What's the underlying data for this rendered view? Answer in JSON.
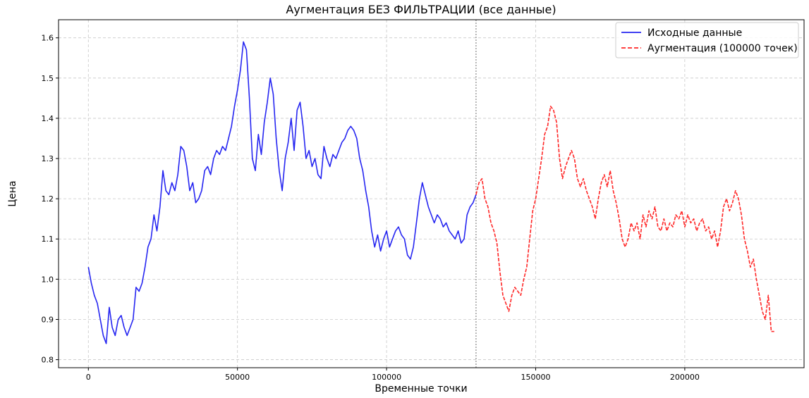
{
  "chart_data": {
    "type": "line",
    "title": "Аугментация БЕЗ ФИЛЬТРАЦИИ (все данные)",
    "xlabel": "Временные точки",
    "ylabel": "Цена",
    "xlim": [
      -10000,
      240000
    ],
    "ylim": [
      0.78,
      1.645
    ],
    "x_ticks": [
      0,
      50000,
      100000,
      150000,
      200000
    ],
    "x_tick_labels": [
      "0",
      "50000",
      "100000",
      "150000",
      "200000"
    ],
    "y_ticks": [
      0.8,
      0.9,
      1.0,
      1.1,
      1.2,
      1.3,
      1.4,
      1.5,
      1.6
    ],
    "y_tick_labels": [
      "0.8",
      "0.9",
      "1.0",
      "1.1",
      "1.2",
      "1.3",
      "1.4",
      "1.5",
      "1.6"
    ],
    "grid": true,
    "legend_position": "top-right",
    "split_x": 130000,
    "series": [
      {
        "name": "Исходные данные",
        "color": "#0000ee",
        "style": "solid",
        "points": [
          [
            0,
            1.03
          ],
          [
            1000,
            0.99
          ],
          [
            2000,
            0.96
          ],
          [
            3000,
            0.94
          ],
          [
            4000,
            0.9
          ],
          [
            5000,
            0.86
          ],
          [
            6000,
            0.84
          ],
          [
            7000,
            0.93
          ],
          [
            8000,
            0.88
          ],
          [
            9000,
            0.86
          ],
          [
            10000,
            0.9
          ],
          [
            11000,
            0.91
          ],
          [
            12000,
            0.88
          ],
          [
            13000,
            0.86
          ],
          [
            14000,
            0.88
          ],
          [
            15000,
            0.9
          ],
          [
            16000,
            0.98
          ],
          [
            17000,
            0.97
          ],
          [
            18000,
            0.99
          ],
          [
            19000,
            1.03
          ],
          [
            20000,
            1.08
          ],
          [
            21000,
            1.1
          ],
          [
            22000,
            1.16
          ],
          [
            23000,
            1.12
          ],
          [
            24000,
            1.18
          ],
          [
            25000,
            1.27
          ],
          [
            26000,
            1.22
          ],
          [
            27000,
            1.21
          ],
          [
            28000,
            1.24
          ],
          [
            29000,
            1.22
          ],
          [
            30000,
            1.26
          ],
          [
            31000,
            1.33
          ],
          [
            32000,
            1.32
          ],
          [
            33000,
            1.28
          ],
          [
            34000,
            1.22
          ],
          [
            35000,
            1.24
          ],
          [
            36000,
            1.19
          ],
          [
            37000,
            1.2
          ],
          [
            38000,
            1.22
          ],
          [
            39000,
            1.27
          ],
          [
            40000,
            1.28
          ],
          [
            41000,
            1.26
          ],
          [
            42000,
            1.3
          ],
          [
            43000,
            1.32
          ],
          [
            44000,
            1.31
          ],
          [
            45000,
            1.33
          ],
          [
            46000,
            1.32
          ],
          [
            47000,
            1.35
          ],
          [
            48000,
            1.38
          ],
          [
            49000,
            1.43
          ],
          [
            50000,
            1.47
          ],
          [
            51000,
            1.52
          ],
          [
            52000,
            1.59
          ],
          [
            53000,
            1.57
          ],
          [
            54000,
            1.45
          ],
          [
            55000,
            1.3
          ],
          [
            56000,
            1.27
          ],
          [
            57000,
            1.36
          ],
          [
            58000,
            1.31
          ],
          [
            59000,
            1.39
          ],
          [
            60000,
            1.44
          ],
          [
            61000,
            1.5
          ],
          [
            62000,
            1.46
          ],
          [
            63000,
            1.35
          ],
          [
            64000,
            1.27
          ],
          [
            65000,
            1.22
          ],
          [
            66000,
            1.3
          ],
          [
            67000,
            1.34
          ],
          [
            68000,
            1.4
          ],
          [
            69000,
            1.32
          ],
          [
            70000,
            1.42
          ],
          [
            71000,
            1.44
          ],
          [
            72000,
            1.38
          ],
          [
            73000,
            1.3
          ],
          [
            74000,
            1.32
          ],
          [
            75000,
            1.28
          ],
          [
            76000,
            1.3
          ],
          [
            77000,
            1.26
          ],
          [
            78000,
            1.25
          ],
          [
            79000,
            1.33
          ],
          [
            80000,
            1.3
          ],
          [
            81000,
            1.28
          ],
          [
            82000,
            1.31
          ],
          [
            83000,
            1.3
          ],
          [
            84000,
            1.32
          ],
          [
            85000,
            1.34
          ],
          [
            86000,
            1.35
          ],
          [
            87000,
            1.37
          ],
          [
            88000,
            1.38
          ],
          [
            89000,
            1.37
          ],
          [
            90000,
            1.35
          ],
          [
            91000,
            1.3
          ],
          [
            92000,
            1.27
          ],
          [
            93000,
            1.22
          ],
          [
            94000,
            1.18
          ],
          [
            95000,
            1.12
          ],
          [
            96000,
            1.08
          ],
          [
            97000,
            1.11
          ],
          [
            98000,
            1.07
          ],
          [
            99000,
            1.1
          ],
          [
            100000,
            1.12
          ],
          [
            101000,
            1.08
          ],
          [
            102000,
            1.1
          ],
          [
            103000,
            1.12
          ],
          [
            104000,
            1.13
          ],
          [
            105000,
            1.11
          ],
          [
            106000,
            1.1
          ],
          [
            107000,
            1.06
          ],
          [
            108000,
            1.05
          ],
          [
            109000,
            1.08
          ],
          [
            110000,
            1.14
          ],
          [
            111000,
            1.2
          ],
          [
            112000,
            1.24
          ],
          [
            113000,
            1.21
          ],
          [
            114000,
            1.18
          ],
          [
            115000,
            1.16
          ],
          [
            116000,
            1.14
          ],
          [
            117000,
            1.16
          ],
          [
            118000,
            1.15
          ],
          [
            119000,
            1.13
          ],
          [
            120000,
            1.14
          ],
          [
            121000,
            1.12
          ],
          [
            122000,
            1.11
          ],
          [
            123000,
            1.1
          ],
          [
            124000,
            1.12
          ],
          [
            125000,
            1.09
          ],
          [
            126000,
            1.1
          ],
          [
            127000,
            1.16
          ],
          [
            128000,
            1.18
          ],
          [
            129000,
            1.19
          ],
          [
            130000,
            1.21
          ]
        ]
      },
      {
        "name": "Аугментация (100000 точек)",
        "color": "#ff0000",
        "style": "dashed",
        "points": [
          [
            130000,
            1.21
          ],
          [
            131000,
            1.24
          ],
          [
            132000,
            1.25
          ],
          [
            133000,
            1.2
          ],
          [
            134000,
            1.18
          ],
          [
            135000,
            1.14
          ],
          [
            136000,
            1.12
          ],
          [
            137000,
            1.09
          ],
          [
            138000,
            1.02
          ],
          [
            139000,
            0.96
          ],
          [
            140000,
            0.94
          ],
          [
            141000,
            0.92
          ],
          [
            142000,
            0.96
          ],
          [
            143000,
            0.98
          ],
          [
            144000,
            0.97
          ],
          [
            145000,
            0.96
          ],
          [
            146000,
            1.0
          ],
          [
            147000,
            1.03
          ],
          [
            148000,
            1.1
          ],
          [
            149000,
            1.17
          ],
          [
            150000,
            1.2
          ],
          [
            151000,
            1.25
          ],
          [
            152000,
            1.3
          ],
          [
            153000,
            1.36
          ],
          [
            154000,
            1.38
          ],
          [
            155000,
            1.43
          ],
          [
            156000,
            1.42
          ],
          [
            157000,
            1.39
          ],
          [
            158000,
            1.3
          ],
          [
            159000,
            1.25
          ],
          [
            160000,
            1.28
          ],
          [
            161000,
            1.3
          ],
          [
            162000,
            1.32
          ],
          [
            163000,
            1.3
          ],
          [
            164000,
            1.25
          ],
          [
            165000,
            1.23
          ],
          [
            166000,
            1.25
          ],
          [
            167000,
            1.22
          ],
          [
            168000,
            1.2
          ],
          [
            169000,
            1.18
          ],
          [
            170000,
            1.15
          ],
          [
            171000,
            1.2
          ],
          [
            172000,
            1.24
          ],
          [
            173000,
            1.26
          ],
          [
            174000,
            1.23
          ],
          [
            175000,
            1.27
          ],
          [
            176000,
            1.22
          ],
          [
            177000,
            1.19
          ],
          [
            178000,
            1.15
          ],
          [
            179000,
            1.1
          ],
          [
            180000,
            1.08
          ],
          [
            181000,
            1.1
          ],
          [
            182000,
            1.14
          ],
          [
            183000,
            1.12
          ],
          [
            184000,
            1.14
          ],
          [
            185000,
            1.1
          ],
          [
            186000,
            1.16
          ],
          [
            187000,
            1.13
          ],
          [
            188000,
            1.17
          ],
          [
            189000,
            1.15
          ],
          [
            190000,
            1.18
          ],
          [
            191000,
            1.13
          ],
          [
            192000,
            1.12
          ],
          [
            193000,
            1.15
          ],
          [
            194000,
            1.12
          ],
          [
            195000,
            1.14
          ],
          [
            196000,
            1.13
          ],
          [
            197000,
            1.16
          ],
          [
            198000,
            1.15
          ],
          [
            199000,
            1.17
          ],
          [
            200000,
            1.13
          ],
          [
            201000,
            1.16
          ],
          [
            202000,
            1.14
          ],
          [
            203000,
            1.15
          ],
          [
            204000,
            1.12
          ],
          [
            205000,
            1.14
          ],
          [
            206000,
            1.15
          ],
          [
            207000,
            1.12
          ],
          [
            208000,
            1.13
          ],
          [
            209000,
            1.1
          ],
          [
            210000,
            1.12
          ],
          [
            211000,
            1.08
          ],
          [
            212000,
            1.12
          ],
          [
            213000,
            1.18
          ],
          [
            214000,
            1.2
          ],
          [
            215000,
            1.17
          ],
          [
            216000,
            1.19
          ],
          [
            217000,
            1.22
          ],
          [
            218000,
            1.2
          ],
          [
            219000,
            1.16
          ],
          [
            220000,
            1.1
          ],
          [
            221000,
            1.07
          ],
          [
            222000,
            1.03
          ],
          [
            223000,
            1.05
          ],
          [
            224000,
            1.0
          ],
          [
            225000,
            0.96
          ],
          [
            226000,
            0.92
          ],
          [
            227000,
            0.9
          ],
          [
            228000,
            0.96
          ],
          [
            229000,
            0.87
          ],
          [
            230000,
            0.87
          ]
        ]
      }
    ]
  }
}
